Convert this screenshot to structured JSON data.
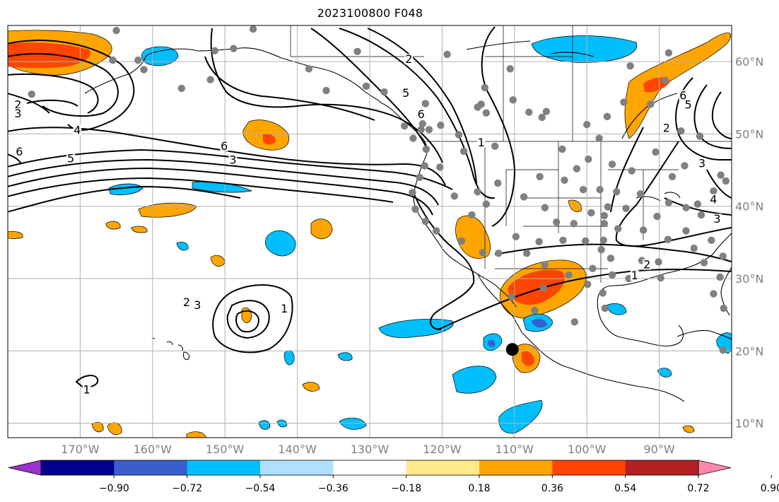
{
  "title": "2023100800 F048",
  "map": {
    "lon_range": [
      -180,
      -80
    ],
    "lat_range": [
      8,
      65
    ],
    "lon_ticks": [
      {
        "lon": -170,
        "label": "170°W"
      },
      {
        "lon": -160,
        "label": "160°W"
      },
      {
        "lon": -150,
        "label": "150°W"
      },
      {
        "lon": -140,
        "label": "140°W"
      },
      {
        "lon": -130,
        "label": "130°W"
      },
      {
        "lon": -120,
        "label": "120°W"
      },
      {
        "lon": -110,
        "label": "110°W"
      },
      {
        "lon": -100,
        "label": "100°W"
      },
      {
        "lon": -90,
        "label": "90°W"
      }
    ],
    "lat_ticks": [
      {
        "lat": 10,
        "label": "10°N"
      },
      {
        "lat": 20,
        "label": "20°N"
      },
      {
        "lat": 30,
        "label": "30°N"
      },
      {
        "lat": 40,
        "label": "40°N"
      },
      {
        "lat": 50,
        "label": "50°N"
      },
      {
        "lat": 60,
        "label": "60°N"
      }
    ],
    "grid": true
  },
  "colorbar": {
    "colors": [
      "#9932cc",
      "#00008b",
      "#3a5fcd",
      "#00bfff",
      "#b0e0ff",
      "#ffffff",
      "#ffe98a",
      "#ffa500",
      "#ff4500",
      "#b22222",
      "#ff88aa"
    ],
    "labels": [
      "−0.90",
      "−0.72",
      "−0.54",
      "−0.36",
      "−0.18",
      "0.18",
      "0.36",
      "0.54",
      "0.72",
      "0.90"
    ]
  },
  "contour_labels": [
    {
      "text": "2",
      "lon": -178.6,
      "lat": 53.7
    },
    {
      "text": "3",
      "lon": -178.6,
      "lat": 52.5
    },
    {
      "text": "4",
      "lon": -170.4,
      "lat": 50.2
    },
    {
      "text": "6",
      "lon": -178.4,
      "lat": 47.2
    },
    {
      "text": "5",
      "lon": -171.3,
      "lat": 46.3
    },
    {
      "text": "6",
      "lon": -150.1,
      "lat": 48.0
    },
    {
      "text": "3",
      "lon": -148.9,
      "lat": 46.1
    },
    {
      "text": "2",
      "lon": -124.6,
      "lat": 60.0
    },
    {
      "text": "5",
      "lon": -125.0,
      "lat": 55.3
    },
    {
      "text": "6",
      "lon": -122.9,
      "lat": 52.4
    },
    {
      "text": "1",
      "lon": -114.6,
      "lat": 48.5
    },
    {
      "text": "6",
      "lon": -86.7,
      "lat": 55.0
    },
    {
      "text": "5",
      "lon": -86.0,
      "lat": 53.7
    },
    {
      "text": "2",
      "lon": -89.0,
      "lat": 50.5
    },
    {
      "text": "3",
      "lon": -84.1,
      "lat": 45.6
    },
    {
      "text": "4",
      "lon": -82.5,
      "lat": 40.6
    },
    {
      "text": "3",
      "lon": -82.0,
      "lat": 37.9
    },
    {
      "text": "2",
      "lon": -91.7,
      "lat": 31.6
    },
    {
      "text": "1",
      "lon": -93.4,
      "lat": 30.1
    },
    {
      "text": "2",
      "lon": -155.3,
      "lat": 26.4
    },
    {
      "text": "3",
      "lon": -153.8,
      "lat": 26.0
    },
    {
      "text": "1",
      "lon": -141.8,
      "lat": 25.5
    },
    {
      "text": "1",
      "lon": -169.1,
      "lat": 14.3
    }
  ],
  "cities": [
    [
      -165,
      64.3
    ],
    [
      -151.4,
      61.5
    ],
    [
      -165.5,
      60.2
    ],
    [
      -162,
      60.2
    ],
    [
      -161.2,
      58.9
    ],
    [
      -156,
      56.3
    ],
    [
      -152,
      57.5
    ],
    [
      -148.8,
      61.8
    ],
    [
      -146.1,
      64.5
    ],
    [
      -176.7,
      55.5
    ],
    [
      -136,
      56
    ],
    [
      -131.7,
      61.4
    ],
    [
      -138.4,
      59
    ],
    [
      -130.5,
      56.6
    ],
    [
      -128,
      55.8
    ],
    [
      -122.3,
      54.2
    ],
    [
      -119.3,
      61
    ],
    [
      -125.2,
      51.1
    ],
    [
      -122.9,
      50.6
    ],
    [
      -122.7,
      51.4
    ],
    [
      -121.8,
      50.6
    ],
    [
      -120.2,
      51.2
    ],
    [
      -117.7,
      49.9
    ],
    [
      -115.1,
      53.7
    ],
    [
      -113.9,
      52.9
    ],
    [
      -114.6,
      54.1
    ],
    [
      -114.1,
      56.4
    ],
    [
      -110.6,
      59
    ],
    [
      -110.2,
      54.7
    ],
    [
      -108,
      53
    ],
    [
      -106.2,
      52.3
    ],
    [
      -105.6,
      53.1
    ],
    [
      -103.4,
      47.9
    ],
    [
      -106.5,
      44.1
    ],
    [
      -112.3,
      43.2
    ],
    [
      -115.1,
      42
    ],
    [
      -112.7,
      48.3
    ],
    [
      -117,
      47.6
    ],
    [
      -120.3,
      45.4
    ],
    [
      -122.4,
      45.6
    ],
    [
      -118.3,
      41.4
    ],
    [
      -115.9,
      38.8
    ],
    [
      -113.9,
      40.3
    ],
    [
      -105.8,
      39.8
    ],
    [
      -108.7,
      41.3
    ],
    [
      -104.2,
      37.8
    ],
    [
      -106.6,
      35.1
    ],
    [
      -109.8,
      35.8
    ],
    [
      -112.2,
      33.5
    ],
    [
      -114.4,
      33.6
    ],
    [
      -117.3,
      35.2
    ],
    [
      -120.8,
      36.6
    ],
    [
      -122.3,
      37.9
    ],
    [
      -123.7,
      39.6
    ],
    [
      -124.1,
      41.9
    ],
    [
      -123.1,
      44
    ],
    [
      -122.2,
      47.9
    ],
    [
      -124,
      49.4
    ],
    [
      -100,
      51.3
    ],
    [
      -98.3,
      49.4
    ],
    [
      -97.2,
      52.4
    ],
    [
      -94.9,
      54.4
    ],
    [
      -94,
      59.4
    ],
    [
      -88.7,
      61.2
    ],
    [
      -89.2,
      57.4
    ],
    [
      -91.2,
      54.1
    ],
    [
      -87,
      50.4
    ],
    [
      -84.4,
      49.7
    ],
    [
      -81.5,
      44.3
    ],
    [
      -80.8,
      43.5
    ],
    [
      -86.5,
      45.6
    ],
    [
      -90.5,
      47.5
    ],
    [
      -93.8,
      44.9
    ],
    [
      -96.5,
      45.8
    ],
    [
      -99.8,
      46.5
    ],
    [
      -101.4,
      45.2
    ],
    [
      -103.1,
      43.6
    ],
    [
      -100.5,
      42.3
    ],
    [
      -98.2,
      42.3
    ],
    [
      -95.9,
      42
    ],
    [
      -94.6,
      39.7
    ],
    [
      -97.6,
      38.7
    ],
    [
      -99.4,
      39.1
    ],
    [
      -101.8,
      37.6
    ],
    [
      -100.2,
      35.2
    ],
    [
      -97.7,
      35.3
    ],
    [
      -97.6,
      37.6
    ],
    [
      -95.7,
      36.9
    ],
    [
      -92.2,
      36.7
    ],
    [
      -90.3,
      38.6
    ],
    [
      -88.7,
      40.5
    ],
    [
      -86.3,
      39.8
    ],
    [
      -84.2,
      38.8
    ],
    [
      -86.3,
      36.6
    ],
    [
      -82.8,
      35.3
    ],
    [
      -85.2,
      34.2
    ],
    [
      -88.8,
      35.4
    ],
    [
      -90.1,
      32.3
    ],
    [
      -92.4,
      32.5
    ],
    [
      -96.7,
      32.8
    ],
    [
      -99.2,
      31.4
    ],
    [
      -102.5,
      30.5
    ],
    [
      -105.8,
      31.9
    ],
    [
      -108.3,
      33.5
    ],
    [
      -103.3,
      35.3
    ],
    [
      -98,
      34
    ],
    [
      -96.5,
      30.5
    ],
    [
      -94.2,
      30
    ],
    [
      -89.8,
      30.1
    ],
    [
      -83.8,
      32.2
    ],
    [
      -81.6,
      30.2
    ],
    [
      -81.2,
      33.1
    ],
    [
      -82.5,
      27.9
    ],
    [
      -81.1,
      25.9
    ],
    [
      -97.5,
      25.9
    ],
    [
      -97.8,
      28
    ],
    [
      -99.9,
      29.2
    ],
    [
      -101.7,
      24
    ],
    [
      -107.2,
      25.6
    ],
    [
      -110.4,
      27.5
    ],
    [
      -106,
      28.7
    ],
    [
      -84.7,
      40.3
    ],
    [
      -88.2,
      44.1
    ],
    [
      -92.6,
      41.7
    ],
    [
      -97.1,
      39.9
    ],
    [
      -82.5,
      42.1
    ],
    [
      -81.2,
      20.1
    ]
  ],
  "station_marker": {
    "lon": -110.3,
    "lat": 20.2
  }
}
